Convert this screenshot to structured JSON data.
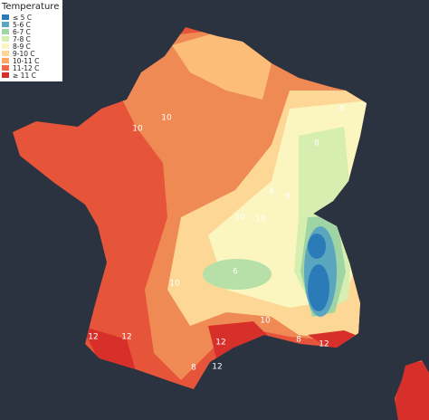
{
  "legend": {
    "title": "Temperature",
    "items": [
      {
        "label": "≤ 5 C",
        "color": "#2b7bb9"
      },
      {
        "label": "5-6 C",
        "color": "#5aa6bf"
      },
      {
        "label": "6-7 C",
        "color": "#9fd4a4"
      },
      {
        "label": "7-8 C",
        "color": "#d6eeb0"
      },
      {
        "label": "8-9 C",
        "color": "#fbf6c0"
      },
      {
        "label": "9-10 C",
        "color": "#fdd796"
      },
      {
        "label": "10-11 C",
        "color": "#f9a964"
      },
      {
        "label": "11-12 C",
        "color": "#ee6b45"
      },
      {
        "label": "≥ 11 C",
        "color": "#d7302a"
      }
    ]
  },
  "contour_labels": [
    "10",
    "10",
    "10",
    "8",
    "8",
    "8",
    "8",
    "10",
    "6",
    "10",
    "8",
    "12",
    "12",
    "10",
    "8",
    "12",
    "12",
    "12"
  ]
}
